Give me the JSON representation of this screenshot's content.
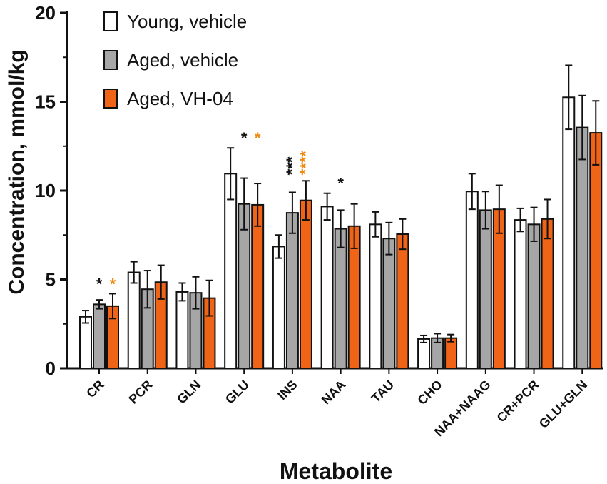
{
  "chart_data": {
    "type": "bar",
    "title": "",
    "xlabel": "Metabolite",
    "ylabel": "Concentration, mmol/kg",
    "ylim": [
      0,
      20
    ],
    "yticks": [
      "0",
      "5",
      "10",
      "15",
      "20"
    ],
    "grid": false,
    "legend_position": "top-left",
    "categories": [
      "CR",
      "PCR",
      "GLN",
      "GLU",
      "INS",
      "NAA",
      "TAU",
      "CHO",
      "NAA+NAAG",
      "CR+PCR",
      "GLU+GLN"
    ],
    "series": [
      {
        "name": "Young, vehicle",
        "color": "#ffffff",
        "values": [
          2.9,
          5.4,
          4.3,
          10.95,
          6.85,
          9.1,
          8.1,
          1.65,
          9.95,
          8.35,
          15.25
        ],
        "errors": [
          0.35,
          0.6,
          0.5,
          1.45,
          0.65,
          0.75,
          0.7,
          0.2,
          1.0,
          0.65,
          1.8
        ]
      },
      {
        "name": "Aged, vehicle",
        "color": "#a6a6a6",
        "values": [
          3.6,
          4.45,
          4.25,
          9.25,
          8.75,
          7.85,
          7.3,
          1.7,
          8.9,
          8.1,
          13.55
        ],
        "errors": [
          0.25,
          1.05,
          0.9,
          1.45,
          1.15,
          1.05,
          0.9,
          0.25,
          1.05,
          0.95,
          1.8
        ]
      },
      {
        "name": "Aged, VH-04",
        "color": "#f06418",
        "values": [
          3.5,
          4.85,
          3.95,
          9.2,
          9.45,
          8.0,
          7.55,
          1.7,
          8.95,
          8.4,
          13.25
        ],
        "errors": [
          0.7,
          0.95,
          1.0,
          1.2,
          1.1,
          1.25,
          0.85,
          0.2,
          1.35,
          1.1,
          1.8
        ]
      }
    ],
    "annotations": [
      {
        "category": "CR",
        "text": "*",
        "color": "#111111"
      },
      {
        "category": "CR",
        "text": "*",
        "color": "#f08a10"
      },
      {
        "category": "GLU",
        "text": "*",
        "color": "#111111"
      },
      {
        "category": "GLU",
        "text": "*",
        "color": "#f08a10"
      },
      {
        "category": "INS",
        "text": "***",
        "color": "#111111"
      },
      {
        "category": "INS",
        "text": "****",
        "color": "#f08a10"
      },
      {
        "category": "NAA",
        "text": "*",
        "color": "#111111"
      }
    ]
  }
}
